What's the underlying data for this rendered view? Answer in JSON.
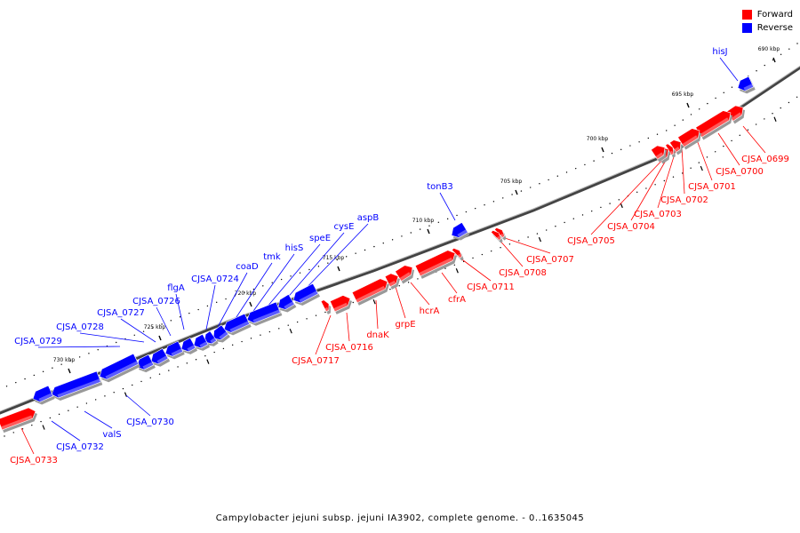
{
  "legend": [
    {
      "label": "Forward",
      "color": "#ff0000"
    },
    {
      "label": "Reverse",
      "color": "#0000ff"
    }
  ],
  "caption": "Campylobacter jejuni subsp. jejuni IA3902, complete genome. - 0..1635045",
  "colors": {
    "forward": "#ff0000",
    "reverse": "#0000ff",
    "backbone": "#666666"
  },
  "kbp_labels": [
    "690 kbp",
    "695 kbp",
    "700 kbp",
    "705 kbp",
    "710 kbp",
    "715 kbp",
    "720 kbp",
    "725 kbp",
    "730 kbp"
  ],
  "genes": [
    {
      "name": "hisJ",
      "strand": "reverse"
    },
    {
      "name": "CJSA_0699",
      "strand": "forward"
    },
    {
      "name": "CJSA_0700",
      "strand": "forward"
    },
    {
      "name": "CJSA_0701",
      "strand": "forward"
    },
    {
      "name": "CJSA_0702",
      "strand": "forward"
    },
    {
      "name": "CJSA_0703",
      "strand": "forward"
    },
    {
      "name": "CJSA_0704",
      "strand": "forward"
    },
    {
      "name": "CJSA_0705",
      "strand": "forward"
    },
    {
      "name": "CJSA_0707",
      "strand": "forward"
    },
    {
      "name": "CJSA_0708",
      "strand": "forward"
    },
    {
      "name": "tonB3",
      "strand": "reverse"
    },
    {
      "name": "CJSA_0711",
      "strand": "forward"
    },
    {
      "name": "cfrA",
      "strand": "forward"
    },
    {
      "name": "hcrA",
      "strand": "forward"
    },
    {
      "name": "grpE",
      "strand": "forward"
    },
    {
      "name": "dnaK",
      "strand": "forward"
    },
    {
      "name": "CJSA_0716",
      "strand": "forward"
    },
    {
      "name": "CJSA_0717",
      "strand": "forward"
    },
    {
      "name": "aspB",
      "strand": "reverse"
    },
    {
      "name": "cysE",
      "strand": "reverse"
    },
    {
      "name": "speE",
      "strand": "reverse"
    },
    {
      "name": "hisS",
      "strand": "reverse"
    },
    {
      "name": "tmk",
      "strand": "reverse"
    },
    {
      "name": "coaD",
      "strand": "reverse"
    },
    {
      "name": "CJSA_0724",
      "strand": "reverse"
    },
    {
      "name": "flgA",
      "strand": "reverse"
    },
    {
      "name": "CJSA_0726",
      "strand": "reverse"
    },
    {
      "name": "CJSA_0727",
      "strand": "reverse"
    },
    {
      "name": "CJSA_0728",
      "strand": "reverse"
    },
    {
      "name": "CJSA_0729",
      "strand": "reverse"
    },
    {
      "name": "CJSA_0730",
      "strand": "reverse"
    },
    {
      "name": "valS",
      "strand": "reverse"
    },
    {
      "name": "CJSA_0732",
      "strand": "reverse"
    },
    {
      "name": "CJSA_0733",
      "strand": "forward"
    }
  ]
}
